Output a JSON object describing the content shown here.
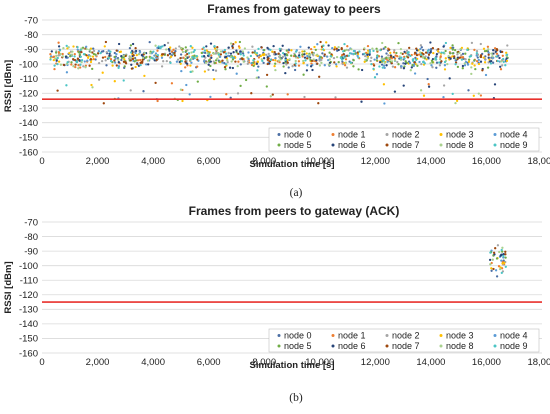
{
  "chart_data": [
    {
      "type": "scatter",
      "title": "Frames from gateway to peers",
      "panel_label": "(a)",
      "xlabel": "Simulation time [s]",
      "ylabel": "RSSI [dBm]",
      "xlim": [
        0,
        18000
      ],
      "ylim": [
        -160,
        -70
      ],
      "x_ticks": [
        0,
        2000,
        4000,
        6000,
        8000,
        10000,
        12000,
        14000,
        16000,
        18000
      ],
      "x_tick_labels": [
        "0",
        "2,000",
        "4,000",
        "6,000",
        "8,000",
        "10,000",
        "12,000",
        "14,000",
        "16,000",
        "18,000"
      ],
      "y_ticks": [
        -70,
        -80,
        -90,
        -100,
        -110,
        -120,
        -130,
        -140,
        -150,
        -160
      ],
      "y_tick_labels": [
        "-70",
        "-80",
        "-90",
        "-100",
        "-110",
        "-120",
        "-130",
        "-140",
        "-150",
        "-160"
      ],
      "grid": "horizontal",
      "legend_position": "bottom-right",
      "reference_line": {
        "y": -124,
        "color": "#e8302c"
      },
      "points_per_node": 130,
      "series": [
        {
          "name": "node 0",
          "color": "#4c6fa5",
          "x_range": [
            300,
            16800
          ],
          "y_median": -95,
          "y_spread": [
            -128,
            -85
          ]
        },
        {
          "name": "node 1",
          "color": "#ed7d31",
          "x_range": [
            300,
            16800
          ],
          "y_median": -95,
          "y_spread": [
            -128,
            -85
          ]
        },
        {
          "name": "node 2",
          "color": "#a5a5a5",
          "x_range": [
            300,
            16800
          ],
          "y_median": -95,
          "y_spread": [
            -128,
            -85
          ]
        },
        {
          "name": "node 3",
          "color": "#ffc000",
          "x_range": [
            300,
            16800
          ],
          "y_median": -95,
          "y_spread": [
            -128,
            -85
          ]
        },
        {
          "name": "node 4",
          "color": "#5b9bd5",
          "x_range": [
            300,
            16800
          ],
          "y_median": -95,
          "y_spread": [
            -128,
            -85
          ]
        },
        {
          "name": "node 5",
          "color": "#70ad47",
          "x_range": [
            300,
            16800
          ],
          "y_median": -95,
          "y_spread": [
            -128,
            -85
          ]
        },
        {
          "name": "node 6",
          "color": "#264478",
          "x_range": [
            300,
            16800
          ],
          "y_median": -95,
          "y_spread": [
            -128,
            -85
          ]
        },
        {
          "name": "node 7",
          "color": "#9e480e",
          "x_range": [
            300,
            16800
          ],
          "y_median": -95,
          "y_spread": [
            -128,
            -85
          ]
        },
        {
          "name": "node 8",
          "color": "#a9d18e",
          "x_range": [
            300,
            16800
          ],
          "y_median": -95,
          "y_spread": [
            -128,
            -85
          ]
        },
        {
          "name": "node 9",
          "color": "#4bc5c5",
          "x_range": [
            300,
            16800
          ],
          "y_median": -95,
          "y_spread": [
            -128,
            -85
          ]
        }
      ]
    },
    {
      "type": "scatter",
      "title": "Frames from peers to gateway (ACK)",
      "panel_label": "(b)",
      "xlabel": "Simulation time [s]",
      "ylabel": "RSSI [dBm]",
      "xlim": [
        0,
        18000
      ],
      "ylim": [
        -160,
        -70
      ],
      "x_ticks": [
        0,
        2000,
        4000,
        6000,
        8000,
        10000,
        12000,
        14000,
        16000,
        18000
      ],
      "x_tick_labels": [
        "0",
        "2,000",
        "4,000",
        "6,000",
        "8,000",
        "10,000",
        "12,000",
        "14,000",
        "16,000",
        "18,000"
      ],
      "y_ticks": [
        -70,
        -80,
        -90,
        -100,
        -110,
        -120,
        -130,
        -140,
        -150,
        -160
      ],
      "y_tick_labels": [
        "-70",
        "-80",
        "-90",
        "-100",
        "-110",
        "-120",
        "-130",
        "-140",
        "-150",
        "-160"
      ],
      "grid": "horizontal",
      "legend_position": "bottom-right",
      "reference_line": {
        "y": -125,
        "color": "#e8302c"
      },
      "points_per_node": 5,
      "series": [
        {
          "name": "node 0",
          "color": "#4c6fa5",
          "x_range": [
            16100,
            16700
          ],
          "y_median": -95,
          "y_spread": [
            -113,
            -86
          ]
        },
        {
          "name": "node 1",
          "color": "#ed7d31",
          "x_range": [
            16100,
            16700
          ],
          "y_median": -95,
          "y_spread": [
            -113,
            -86
          ]
        },
        {
          "name": "node 2",
          "color": "#a5a5a5",
          "x_range": [
            16100,
            16700
          ],
          "y_median": -95,
          "y_spread": [
            -113,
            -86
          ]
        },
        {
          "name": "node 3",
          "color": "#ffc000",
          "x_range": [
            16100,
            16700
          ],
          "y_median": -95,
          "y_spread": [
            -113,
            -86
          ]
        },
        {
          "name": "node 4",
          "color": "#5b9bd5",
          "x_range": [
            16100,
            16700
          ],
          "y_median": -95,
          "y_spread": [
            -113,
            -86
          ]
        },
        {
          "name": "node 5",
          "color": "#70ad47",
          "x_range": [
            16100,
            16700
          ],
          "y_median": -95,
          "y_spread": [
            -113,
            -86
          ]
        },
        {
          "name": "node 6",
          "color": "#264478",
          "x_range": [
            16100,
            16700
          ],
          "y_median": -95,
          "y_spread": [
            -113,
            -86
          ]
        },
        {
          "name": "node 7",
          "color": "#9e480e",
          "x_range": [
            16100,
            16700
          ],
          "y_median": -95,
          "y_spread": [
            -113,
            -86
          ]
        },
        {
          "name": "node 8",
          "color": "#a9d18e",
          "x_range": [
            16100,
            16700
          ],
          "y_median": -95,
          "y_spread": [
            -113,
            -86
          ]
        },
        {
          "name": "node 9",
          "color": "#4bc5c5",
          "x_range": [
            16100,
            16700
          ],
          "y_median": -95,
          "y_spread": [
            -113,
            -86
          ]
        }
      ]
    }
  ]
}
